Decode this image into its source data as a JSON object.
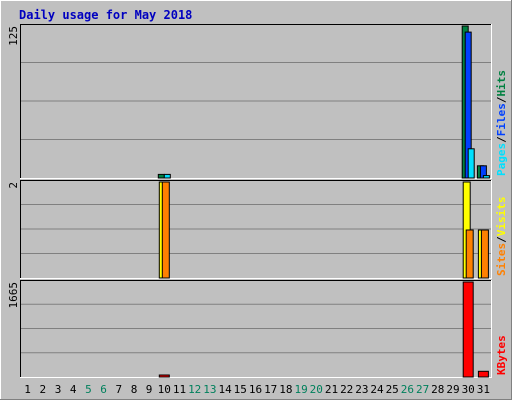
{
  "colors": {
    "background": "#C0C0C0",
    "title": "#0000C0",
    "hits": "#008040",
    "files": "#0040FF",
    "pages": "#00E0FF",
    "visits": "#FFFF00",
    "sites": "#FF8000",
    "kbytes": "#FF0000",
    "weekend_label": "#00805C",
    "grid": "#808080"
  },
  "chart_data": {
    "type": "bar",
    "title": "Daily usage for May 2018",
    "days": [
      "1",
      "2",
      "3",
      "4",
      "5",
      "6",
      "7",
      "8",
      "9",
      "10",
      "11",
      "12",
      "13",
      "14",
      "15",
      "16",
      "17",
      "18",
      "19",
      "20",
      "21",
      "22",
      "23",
      "24",
      "25",
      "26",
      "27",
      "28",
      "29",
      "30",
      "31"
    ],
    "weekend_days": [
      "5",
      "6",
      "12",
      "13",
      "19",
      "20",
      "26",
      "27"
    ],
    "panels": [
      {
        "id": "hits-files-pages",
        "ymax_label": "125",
        "ymax": 125,
        "legend": [
          {
            "text": "Pages",
            "color": "pages"
          },
          {
            "text": "/",
            "color": "axis"
          },
          {
            "text": "Files",
            "color": "files"
          },
          {
            "text": "/",
            "color": "axis"
          },
          {
            "text": "Hits",
            "color": "hits"
          }
        ],
        "series": [
          {
            "name": "Hits",
            "color": "hits",
            "values": [
              0,
              0,
              0,
              0,
              0,
              0,
              0,
              0,
              0,
              3,
              0,
              0,
              0,
              0,
              0,
              0,
              0,
              0,
              0,
              0,
              0,
              0,
              0,
              0,
              0,
              0,
              0,
              0,
              0,
              125,
              10
            ]
          },
          {
            "name": "Files",
            "color": "files",
            "values": [
              0,
              0,
              0,
              0,
              0,
              0,
              0,
              0,
              0,
              0,
              0,
              0,
              0,
              0,
              0,
              0,
              0,
              0,
              0,
              0,
              0,
              0,
              0,
              0,
              0,
              0,
              0,
              0,
              0,
              120,
              10
            ]
          },
          {
            "name": "Pages",
            "color": "pages",
            "values": [
              0,
              0,
              0,
              0,
              0,
              0,
              0,
              0,
              0,
              3,
              0,
              0,
              0,
              0,
              0,
              0,
              0,
              0,
              0,
              0,
              0,
              0,
              0,
              0,
              0,
              0,
              0,
              0,
              0,
              24,
              2
            ]
          }
        ]
      },
      {
        "id": "visits-sites",
        "ymax_label": "2",
        "ymax": 2,
        "legend": [
          {
            "text": "Sites",
            "color": "sites"
          },
          {
            "text": "/",
            "color": "axis"
          },
          {
            "text": "Visits",
            "color": "visits"
          }
        ],
        "series": [
          {
            "name": "Visits",
            "color": "visits",
            "values": [
              0,
              0,
              0,
              0,
              0,
              0,
              0,
              0,
              0,
              2,
              0,
              0,
              0,
              0,
              0,
              0,
              0,
              0,
              0,
              0,
              0,
              0,
              0,
              0,
              0,
              0,
              0,
              0,
              0,
              2,
              1
            ]
          },
          {
            "name": "Sites",
            "color": "sites",
            "values": [
              0,
              0,
              0,
              0,
              0,
              0,
              0,
              0,
              0,
              2,
              0,
              0,
              0,
              0,
              0,
              0,
              0,
              0,
              0,
              0,
              0,
              0,
              0,
              0,
              0,
              0,
              0,
              0,
              0,
              1,
              1
            ]
          }
        ]
      },
      {
        "id": "kbytes",
        "ymax_label": "1665",
        "ymax": 1665,
        "legend": [
          {
            "text": "KBytes",
            "color": "kbytes"
          }
        ],
        "series": [
          {
            "name": "KBytes",
            "color": "kbytes",
            "values": [
              0,
              0,
              0,
              0,
              0,
              0,
              0,
              0,
              0,
              20,
              0,
              0,
              0,
              0,
              0,
              0,
              0,
              0,
              0,
              0,
              0,
              0,
              0,
              0,
              0,
              0,
              0,
              0,
              0,
              1665,
              100
            ]
          }
        ]
      }
    ]
  }
}
